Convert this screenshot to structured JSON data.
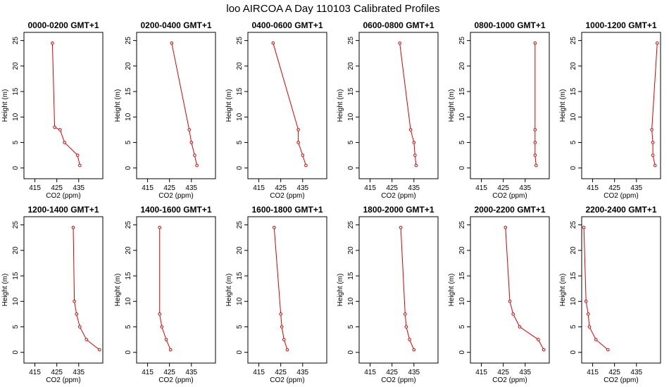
{
  "figure": {
    "title": "loo AIRCOA A  Day 110103  Calibrated Profiles",
    "xlabel": "CO2 (ppm)",
    "ylabel": "Height (m)"
  },
  "colors": {
    "series": "#dd0000",
    "axes": "#000000",
    "text": "#000000"
  },
  "chart_data": [
    {
      "type": "line",
      "title": "0000-0200 GMT+1",
      "xlabel": "CO2 (ppm)",
      "ylabel": "Height (m)",
      "xlim": [
        410,
        446
      ],
      "ylim": [
        -1,
        25.5
      ],
      "xticks": [
        415,
        425,
        435
      ],
      "yticks": [
        0,
        5,
        10,
        15,
        20,
        25
      ],
      "series": [
        {
          "x": [
            435.5,
            434.5,
            428.5,
            426.5,
            424.0,
            423.0
          ],
          "y": [
            0.5,
            2.5,
            5.0,
            7.5,
            8.0,
            24.5
          ]
        }
      ]
    },
    {
      "type": "line",
      "title": "0200-0400 GMT+1",
      "xlabel": "CO2 (ppm)",
      "ylabel": "Height (m)",
      "xlim": [
        410,
        446
      ],
      "ylim": [
        -1,
        25.5
      ],
      "xticks": [
        415,
        425,
        435
      ],
      "yticks": [
        0,
        5,
        10,
        15,
        20,
        25
      ],
      "series": [
        {
          "x": [
            437.5,
            436.5,
            435.0,
            434.0,
            426.0
          ],
          "y": [
            0.5,
            2.5,
            5.0,
            7.5,
            24.5
          ]
        }
      ]
    },
    {
      "type": "line",
      "title": "0400-0600 GMT+1",
      "xlabel": "CO2 (ppm)",
      "ylabel": "Height (m)",
      "xlim": [
        410,
        446
      ],
      "ylim": [
        -1,
        25.5
      ],
      "xticks": [
        415,
        425,
        435
      ],
      "yticks": [
        0,
        5,
        10,
        15,
        20,
        25
      ],
      "series": [
        {
          "x": [
            436.5,
            435.0,
            433.0,
            433.0,
            421.5
          ],
          "y": [
            0.5,
            2.5,
            5.0,
            7.5,
            24.5
          ]
        }
      ]
    },
    {
      "type": "line",
      "title": "0600-0800 GMT+1",
      "xlabel": "CO2 (ppm)",
      "ylabel": "Height (m)",
      "xlim": [
        410,
        446
      ],
      "ylim": [
        -1,
        25.5
      ],
      "xticks": [
        415,
        425,
        435
      ],
      "yticks": [
        0,
        5,
        10,
        15,
        20,
        25
      ],
      "series": [
        {
          "x": [
            436.0,
            435.5,
            435.0,
            433.5,
            428.5
          ],
          "y": [
            0.5,
            2.5,
            5.0,
            7.5,
            24.5
          ]
        }
      ]
    },
    {
      "type": "line",
      "title": "0800-1000 GMT+1",
      "xlabel": "CO2 (ppm)",
      "ylabel": "Height (m)",
      "xlim": [
        410,
        446
      ],
      "ylim": [
        -1,
        25.5
      ],
      "xticks": [
        415,
        425,
        435
      ],
      "yticks": [
        0,
        5,
        10,
        15,
        20,
        25
      ],
      "series": [
        {
          "x": [
            440.0,
            439.5,
            439.5,
            439.5,
            439.5
          ],
          "y": [
            0.5,
            2.5,
            5.0,
            7.5,
            24.5
          ]
        }
      ]
    },
    {
      "type": "line",
      "title": "1000-1200 GMT+1",
      "xlabel": "CO2 (ppm)",
      "ylabel": "Height (m)",
      "xlim": [
        410,
        446
      ],
      "ylim": [
        -1,
        25.5
      ],
      "xticks": [
        415,
        425,
        435
      ],
      "yticks": [
        0,
        5,
        10,
        15,
        20,
        25
      ],
      "series": [
        {
          "x": [
            443.5,
            442.5,
            442.5,
            442.0,
            444.5
          ],
          "y": [
            0.5,
            2.5,
            5.0,
            7.5,
            24.5
          ]
        }
      ]
    },
    {
      "type": "line",
      "title": "1200-1400 GMT+1",
      "xlabel": "CO2 (ppm)",
      "ylabel": "Height (m)",
      "xlim": [
        410,
        446
      ],
      "ylim": [
        -1,
        25.5
      ],
      "xticks": [
        415,
        425,
        435
      ],
      "yticks": [
        0,
        5,
        10,
        15,
        20,
        25
      ],
      "series": [
        {
          "x": [
            444.5,
            438.5,
            435.5,
            434.0,
            433.0,
            432.5
          ],
          "y": [
            0.5,
            2.5,
            5.0,
            7.5,
            10.0,
            24.5
          ]
        }
      ]
    },
    {
      "type": "line",
      "title": "1400-1600 GMT+1",
      "xlabel": "CO2 (ppm)",
      "ylabel": "Height (m)",
      "xlim": [
        410,
        446
      ],
      "ylim": [
        -1,
        25.5
      ],
      "xticks": [
        415,
        425,
        435
      ],
      "yticks": [
        0,
        5,
        10,
        15,
        20,
        25
      ],
      "series": [
        {
          "x": [
            425.5,
            423.5,
            421.5,
            420.5,
            420.5
          ],
          "y": [
            0.5,
            2.5,
            5.0,
            7.5,
            24.5
          ]
        }
      ]
    },
    {
      "type": "line",
      "title": "1600-1800 GMT+1",
      "xlabel": "CO2 (ppm)",
      "ylabel": "Height (m)",
      "xlim": [
        410,
        446
      ],
      "ylim": [
        -1,
        25.5
      ],
      "xticks": [
        415,
        425,
        435
      ],
      "yticks": [
        0,
        5,
        10,
        15,
        20,
        25
      ],
      "series": [
        {
          "x": [
            428.0,
            426.5,
            425.5,
            425.0,
            422.0
          ],
          "y": [
            0.5,
            2.5,
            5.0,
            7.5,
            24.5
          ]
        }
      ]
    },
    {
      "type": "line",
      "title": "1800-2000 GMT+1",
      "xlabel": "CO2 (ppm)",
      "ylabel": "Height (m)",
      "xlim": [
        410,
        446
      ],
      "ylim": [
        -1,
        25.5
      ],
      "xticks": [
        415,
        425,
        435
      ],
      "yticks": [
        0,
        5,
        10,
        15,
        20,
        25
      ],
      "series": [
        {
          "x": [
            435.0,
            433.0,
            431.5,
            431.0,
            429.0
          ],
          "y": [
            0.5,
            2.5,
            5.0,
            7.5,
            24.5
          ]
        }
      ]
    },
    {
      "type": "line",
      "title": "2000-2200 GMT+1",
      "xlabel": "CO2 (ppm)",
      "ylabel": "Height (m)",
      "xlim": [
        410,
        446
      ],
      "ylim": [
        -1,
        25.5
      ],
      "xticks": [
        415,
        425,
        435
      ],
      "yticks": [
        0,
        5,
        10,
        15,
        20,
        25
      ],
      "series": [
        {
          "x": [
            443.5,
            441.0,
            432.5,
            429.5,
            428.0,
            426.0
          ],
          "y": [
            0.5,
            2.5,
            5.0,
            7.5,
            10.0,
            24.5
          ]
        }
      ]
    },
    {
      "type": "line",
      "title": "2200-2400 GMT+1",
      "xlabel": "CO2 (ppm)",
      "ylabel": "Height (m)",
      "xlim": [
        410,
        446
      ],
      "ylim": [
        -1,
        25.5
      ],
      "xticks": [
        415,
        425,
        435
      ],
      "yticks": [
        0,
        5,
        10,
        15,
        20,
        25
      ],
      "series": [
        {
          "x": [
            422.0,
            416.5,
            413.5,
            413.0,
            412.0,
            411.0
          ],
          "y": [
            0.5,
            2.5,
            5.0,
            7.5,
            10.0,
            24.5
          ]
        }
      ]
    }
  ]
}
